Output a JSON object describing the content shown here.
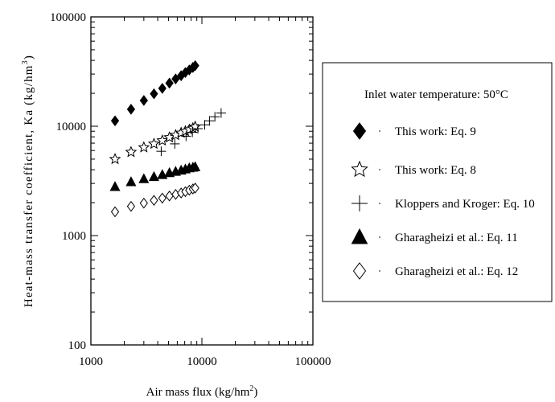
{
  "chart_data": {
    "type": "scatter",
    "title": "",
    "xlabel": "Air mass flux (kg/hm",
    "xlabel_sup": "2",
    "xlabel_end": ")",
    "ylabel": "Heat-mass transfer coefficient, Ka (kg/hm",
    "ylabel_sup": "3",
    "ylabel_end": ")",
    "xscale": "log",
    "yscale": "log",
    "xlim": [
      1000,
      100000
    ],
    "ylim": [
      100,
      100000
    ],
    "x_ticks": [
      1000,
      10000,
      100000
    ],
    "x_tick_labels": [
      "1000",
      "10000",
      "100000"
    ],
    "y_ticks": [
      100,
      1000,
      10000,
      100000
    ],
    "y_tick_labels": [
      "100",
      "1000",
      "10000",
      "100000"
    ],
    "grid": false,
    "legend_position": "right",
    "legend_title": "Inlet water temperature: 50°C",
    "series": [
      {
        "name": "This work: Eq. 9",
        "marker": "diamond-filled",
        "x": [
          1650,
          2300,
          3000,
          3700,
          4400,
          5100,
          5800,
          6500,
          7100,
          7700,
          8300,
          8700
        ],
        "y": [
          11200,
          14300,
          17200,
          19800,
          22200,
          24800,
          27100,
          29000,
          31000,
          32700,
          34500,
          35800
        ]
      },
      {
        "name": "This work: Eq. 8",
        "marker": "star-open",
        "x": [
          1650,
          2300,
          3000,
          3700,
          4400,
          5100,
          5800,
          6500,
          7100,
          7700,
          8300,
          8700
        ],
        "y": [
          5000,
          5800,
          6400,
          6900,
          7400,
          7900,
          8300,
          8700,
          9000,
          9300,
          9600,
          9900
        ]
      },
      {
        "name": "Kloppers and Kroger: Eq. 10",
        "marker": "plus",
        "x": [
          4300,
          5700,
          7200,
          8200,
          9200,
          10600,
          11700,
          13100,
          14900
        ],
        "y": [
          5900,
          6900,
          8100,
          8800,
          9500,
          10300,
          11200,
          12200,
          13200
        ]
      },
      {
        "name": "Gharagheizi et al.: Eq. 11",
        "marker": "triangle-filled",
        "x": [
          1650,
          2300,
          3000,
          3700,
          4400,
          5100,
          5800,
          6500,
          7100,
          7700,
          8300,
          8700
        ],
        "y": [
          2800,
          3100,
          3300,
          3450,
          3600,
          3750,
          3850,
          3950,
          4050,
          4150,
          4200,
          4250
        ]
      },
      {
        "name": "Gharagheizi et al.: Eq. 12",
        "marker": "diamond-open",
        "x": [
          1650,
          2300,
          3000,
          3700,
          4400,
          5100,
          5800,
          6500,
          7100,
          7700,
          8300,
          8700
        ],
        "y": [
          1650,
          1850,
          1980,
          2100,
          2200,
          2300,
          2380,
          2450,
          2520,
          2600,
          2670,
          2720
        ]
      }
    ]
  }
}
